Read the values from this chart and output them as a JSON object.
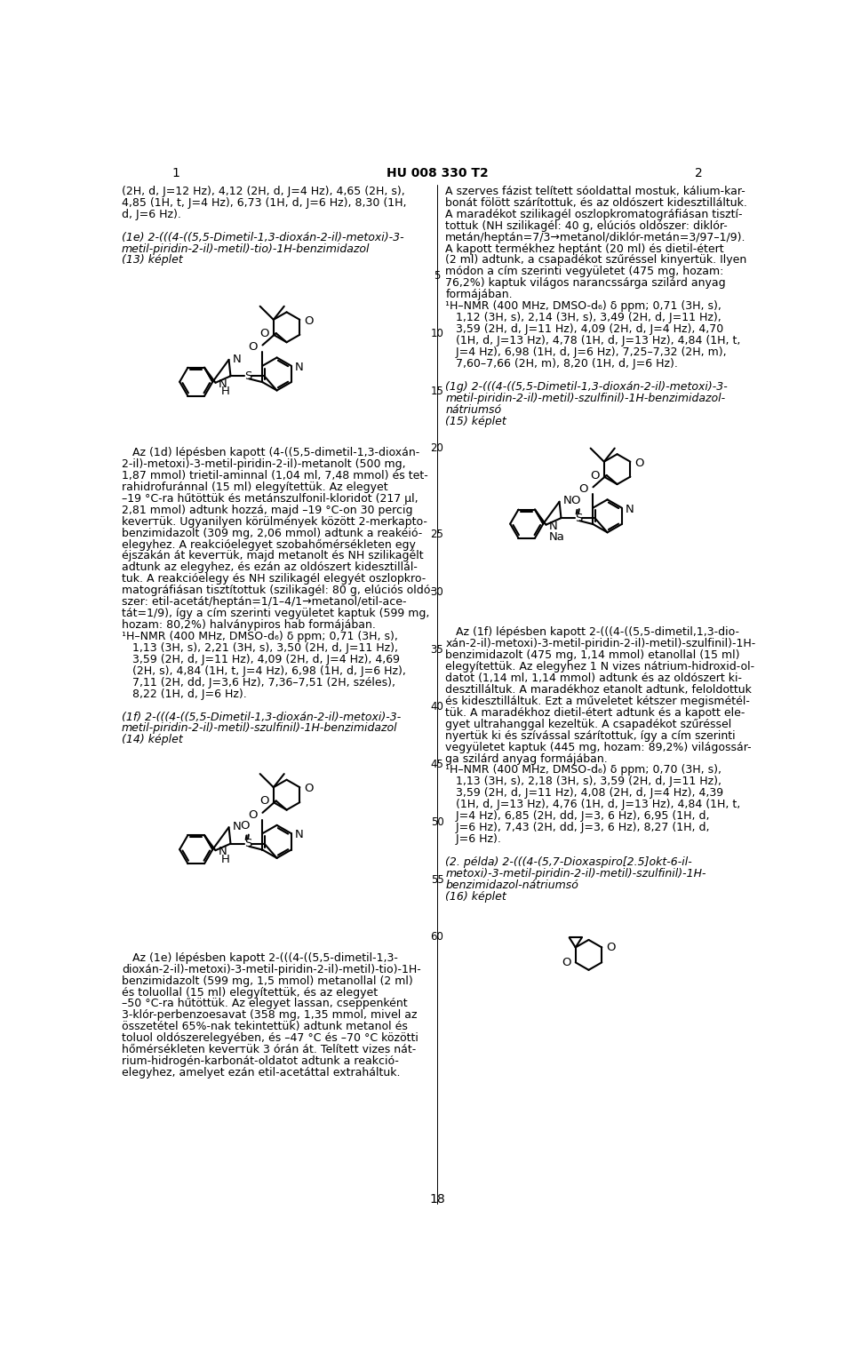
{
  "page_number_left": "1",
  "page_number_right": "2",
  "header_center": "HU 008 330 T2",
  "footer_center": "18",
  "background_color": "#ffffff",
  "text_color": "#000000"
}
